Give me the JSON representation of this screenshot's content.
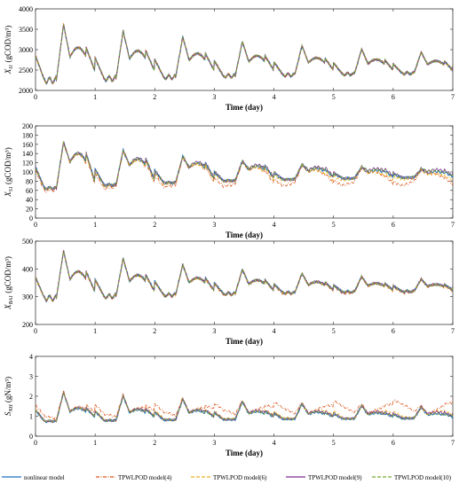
{
  "figure": {
    "legend": [
      {
        "label": "nonlinear model",
        "color": "#1f6fc0",
        "dash": ""
      },
      {
        "label": "TPWLPOD model(4)",
        "color": "#d9541a",
        "dash": "4,1.5,1,1.5"
      },
      {
        "label": "TPWLPOD model(6)",
        "color": "#edb120",
        "dash": "4,2"
      },
      {
        "label": "TPWLPOD model(9)",
        "color": "#7e2f8e",
        "dash": ""
      },
      {
        "label": "TPWLPOD model(10)",
        "color": "#77ac30",
        "dash": "4,2"
      }
    ]
  },
  "chart_data": [
    {
      "type": "line",
      "ylabel": "X_{I1} (gCOD/m³)",
      "xlabel": "Time (day)",
      "xlim": [
        0,
        7
      ],
      "ylim": [
        2000,
        4000
      ],
      "xticks": [
        0,
        1,
        2,
        3,
        4,
        5,
        6,
        7
      ],
      "yticks": [
        2000,
        2500,
        3000,
        3500,
        4000
      ],
      "base": [
        2850,
        2250,
        3620,
        2800,
        3050,
        2200
      ],
      "amp_decay": 0.85,
      "series_offsets": [
        0,
        0,
        0,
        0,
        0
      ]
    },
    {
      "type": "line",
      "ylabel": "X_{S1} (gCOD/m³)",
      "xlabel": "Time (day)",
      "xlim": [
        0,
        7
      ],
      "ylim": [
        0,
        200
      ],
      "xticks": [
        0,
        1,
        2,
        3,
        4,
        5,
        6,
        7
      ],
      "yticks": [
        0,
        20,
        40,
        60,
        80,
        100,
        120,
        140,
        160,
        180,
        200
      ],
      "base": [
        110,
        65,
        165,
        120,
        140,
        55
      ],
      "amp_decay": 0.75,
      "series_offsets": [
        0,
        -12,
        -5,
        3,
        2
      ]
    },
    {
      "type": "line",
      "ylabel": "X_{BA1} (gCOD/m³)",
      "xlabel": "Time (day)",
      "xlim": [
        0,
        7
      ],
      "ylim": [
        200,
        500
      ],
      "xticks": [
        0,
        1,
        2,
        3,
        4,
        5,
        6,
        7
      ],
      "yticks": [
        200,
        300,
        400,
        500
      ],
      "base": [
        370,
        295,
        465,
        360,
        390,
        280
      ],
      "amp_decay": 0.8,
      "series_offsets": [
        0,
        -3,
        -2,
        1,
        0
      ]
    },
    {
      "type": "line",
      "ylabel": "S_{NH} (gN/m³)",
      "xlabel": "Time (day)",
      "xlim": [
        0,
        7
      ],
      "ylim": [
        0,
        4
      ],
      "xticks": [
        0,
        1,
        2,
        3,
        4,
        5,
        6,
        7
      ],
      "yticks": [
        0,
        1,
        2,
        3,
        4
      ],
      "base": [
        1.3,
        0.75,
        2.2,
        1.2,
        1.4,
        0.7
      ],
      "amp_decay": 0.85,
      "series_offsets": [
        0,
        0.5,
        0.1,
        0.05,
        0
      ]
    }
  ]
}
